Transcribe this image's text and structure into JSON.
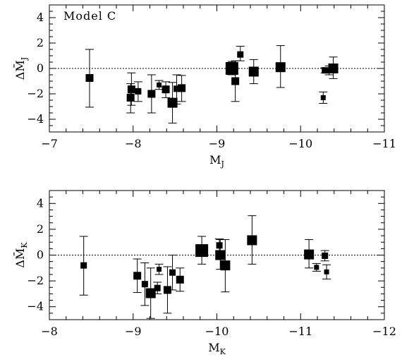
{
  "annotation": "Model C",
  "chart_data": [
    {
      "type": "scatter",
      "xlabel": "M_J",
      "ylabel": "ΔM̄_J",
      "xlim": [
        -7,
        -11
      ],
      "ylim": [
        -5,
        5
      ],
      "x_ticks": [
        -7,
        -8,
        -9,
        -10,
        -11
      ],
      "y_ticks": [
        -4,
        -2,
        0,
        2,
        4
      ],
      "reference_line": 0,
      "grid": false,
      "points": [
        {
          "x": -7.48,
          "y": -0.75,
          "ylo": -3.05,
          "yhi": 1.5,
          "size": "medium"
        },
        {
          "x": -7.98,
          "y": -1.65,
          "ylo": -2.9,
          "yhi": -0.35,
          "size": "medium"
        },
        {
          "x": -7.97,
          "y": -2.3,
          "ylo": -3.5,
          "yhi": -1.2,
          "size": "medium"
        },
        {
          "x": -8.06,
          "y": -1.8,
          "ylo": -2.6,
          "yhi": -1.05,
          "size": "small"
        },
        {
          "x": -8.22,
          "y": -2.0,
          "ylo": -3.5,
          "yhi": -0.5,
          "size": "medium"
        },
        {
          "x": -8.31,
          "y": -1.3,
          "ylo": -1.65,
          "yhi": -0.95,
          "size": "tiny"
        },
        {
          "x": -8.39,
          "y": -1.65,
          "ylo": -2.3,
          "yhi": -1.05,
          "size": "medium"
        },
        {
          "x": -8.47,
          "y": -2.7,
          "ylo": -4.3,
          "yhi": -1.1,
          "size": "large"
        },
        {
          "x": -8.52,
          "y": -1.6,
          "ylo": -2.8,
          "yhi": -0.5,
          "size": "small"
        },
        {
          "x": -8.58,
          "y": -1.55,
          "ylo": -2.6,
          "yhi": -0.55,
          "size": "medium"
        },
        {
          "x": -9.18,
          "y": 0.0,
          "ylo": -0.5,
          "yhi": 0.55,
          "size": "xlarge"
        },
        {
          "x": -9.22,
          "y": -1.0,
          "ylo": -2.6,
          "yhi": 0.6,
          "size": "medium"
        },
        {
          "x": -9.28,
          "y": 1.1,
          "ylo": 0.6,
          "yhi": 1.75,
          "size": "small"
        },
        {
          "x": -9.44,
          "y": -0.25,
          "ylo": -1.2,
          "yhi": 0.7,
          "size": "large"
        },
        {
          "x": -9.76,
          "y": 0.1,
          "ylo": -1.5,
          "yhi": 1.8,
          "size": "large"
        },
        {
          "x": -10.27,
          "y": -2.3,
          "ylo": -2.75,
          "yhi": -1.85,
          "size": "tiny"
        },
        {
          "x": -10.29,
          "y": -0.15,
          "ylo": -0.35,
          "yhi": 0.05,
          "size": "small"
        },
        {
          "x": -10.34,
          "y": -0.2,
          "ylo": -0.5,
          "yhi": 0.2,
          "size": "tiny"
        },
        {
          "x": -10.39,
          "y": 0.0,
          "ylo": -0.8,
          "yhi": 0.9,
          "size": "large"
        }
      ]
    },
    {
      "type": "scatter",
      "xlabel": "M_K",
      "ylabel": "ΔM̄_K",
      "xlim": [
        -8,
        -12
      ],
      "ylim": [
        -5,
        5
      ],
      "x_ticks": [
        -8,
        -9,
        -10,
        -11,
        -12
      ],
      "y_ticks": [
        -4,
        -2,
        0,
        2,
        4
      ],
      "reference_line": 0,
      "grid": false,
      "points": [
        {
          "x": -8.41,
          "y": -0.8,
          "ylo": -3.1,
          "yhi": 1.45,
          "size": "small"
        },
        {
          "x": -9.05,
          "y": -1.6,
          "ylo": -2.9,
          "yhi": -0.3,
          "size": "medium"
        },
        {
          "x": -9.14,
          "y": -2.25,
          "ylo": -3.9,
          "yhi": -0.6,
          "size": "small"
        },
        {
          "x": -9.21,
          "y": -2.95,
          "ylo": -4.9,
          "yhi": -1.0,
          "size": "large"
        },
        {
          "x": -9.29,
          "y": -2.55,
          "ylo": -3.0,
          "yhi": -2.1,
          "size": "small"
        },
        {
          "x": -9.31,
          "y": -1.1,
          "ylo": -1.5,
          "yhi": -0.7,
          "size": "tiny"
        },
        {
          "x": -9.41,
          "y": -2.7,
          "ylo": -4.5,
          "yhi": -0.9,
          "size": "medium"
        },
        {
          "x": -9.47,
          "y": -1.35,
          "ylo": -2.7,
          "yhi": 0.0,
          "size": "small"
        },
        {
          "x": -9.56,
          "y": -1.9,
          "ylo": -2.8,
          "yhi": -1.0,
          "size": "medium"
        },
        {
          "x": -9.82,
          "y": 0.35,
          "ylo": -0.7,
          "yhi": 1.45,
          "size": "xlarge"
        },
        {
          "x": -10.03,
          "y": 0.75,
          "ylo": 0.25,
          "yhi": 1.25,
          "size": "small"
        },
        {
          "x": -10.04,
          "y": 0.0,
          "ylo": -1.1,
          "yhi": 1.2,
          "size": "large"
        },
        {
          "x": -10.1,
          "y": -0.8,
          "ylo": -2.85,
          "yhi": 1.2,
          "size": "large"
        },
        {
          "x": -10.42,
          "y": 1.15,
          "ylo": -0.7,
          "yhi": 3.05,
          "size": "large"
        },
        {
          "x": -11.1,
          "y": 0.05,
          "ylo": -1.0,
          "yhi": 1.2,
          "size": "large"
        },
        {
          "x": -11.19,
          "y": -0.95,
          "ylo": -1.25,
          "yhi": -0.65,
          "size": "tiny"
        },
        {
          "x": -11.29,
          "y": -0.05,
          "ylo": -0.45,
          "yhi": 0.35,
          "size": "small"
        },
        {
          "x": -11.31,
          "y": -1.3,
          "ylo": -1.85,
          "yhi": -0.75,
          "size": "tiny"
        }
      ]
    }
  ]
}
